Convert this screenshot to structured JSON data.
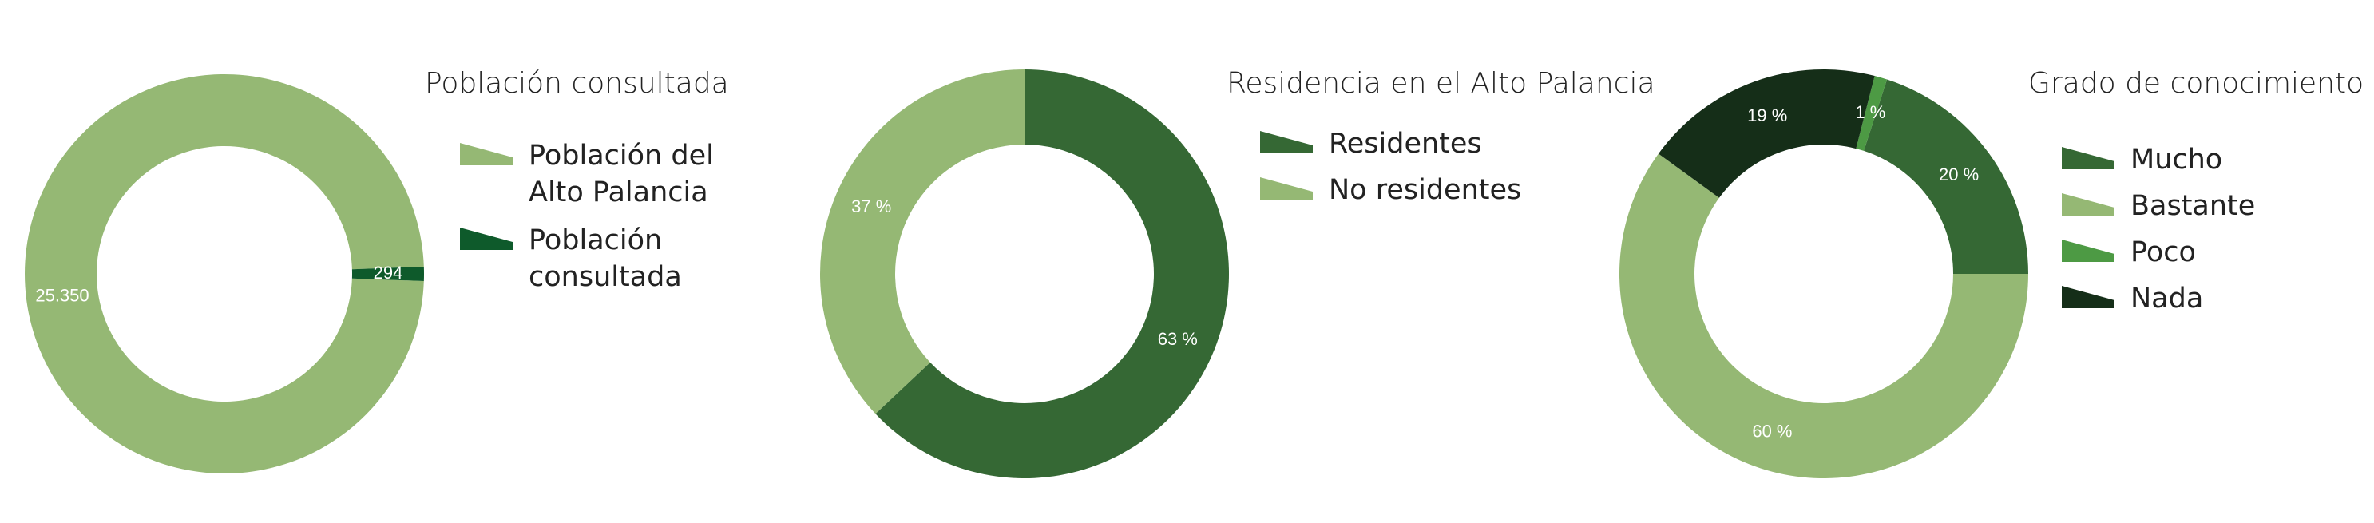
{
  "chart_data": [
    {
      "type": "pie",
      "title": "Población consultada",
      "categories": [
        "Población del Alto Palancia",
        "Población consultada"
      ],
      "values": [
        25350,
        294
      ],
      "value_labels": [
        "25.350",
        "294"
      ],
      "colors": [
        "#95b874",
        "#0e5a2b"
      ],
      "donut": true,
      "legend_position": "right"
    },
    {
      "type": "pie",
      "title": "Residencia en el Alto Palancia",
      "categories": [
        "Residentes",
        "No residentes"
      ],
      "values": [
        63,
        37
      ],
      "value_labels": [
        "63 %",
        "37 %"
      ],
      "colors": [
        "#356834",
        "#95b874"
      ],
      "donut": true,
      "legend_position": "right"
    },
    {
      "type": "pie",
      "title": "Grado de conocimiento",
      "categories": [
        "Mucho",
        "Bastante",
        "Poco",
        "Nada"
      ],
      "values": [
        20,
        60,
        1,
        19
      ],
      "value_labels": [
        "20 %",
        "60 %",
        "1 %",
        "19 %"
      ],
      "colors": [
        "#356834",
        "#95b874",
        "#4d9a44",
        "#152e18"
      ],
      "donut": true,
      "legend_position": "right"
    }
  ]
}
